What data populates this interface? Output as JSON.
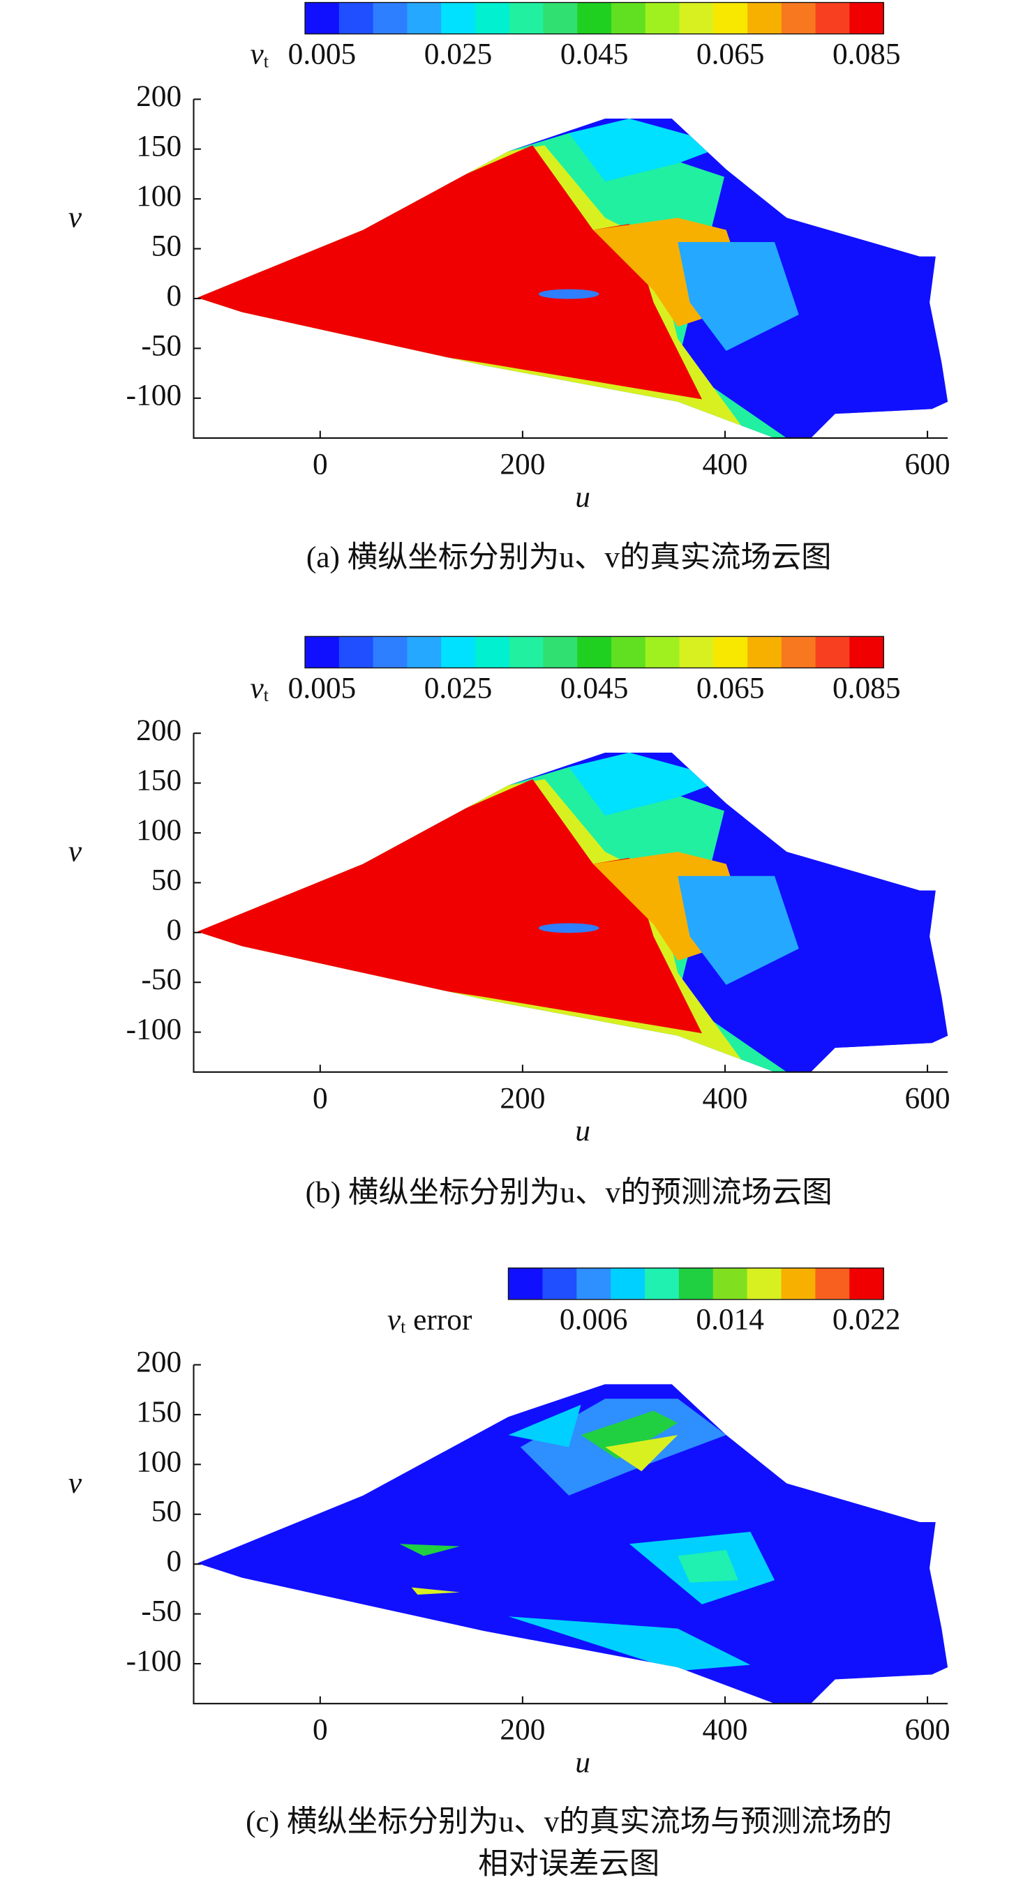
{
  "chart_data": [
    {
      "type": "contour",
      "title": "(a) 横纵坐标分别为u、v的真实流场云图",
      "xlabel": "u",
      "ylabel": "v",
      "xlim": [
        -125,
        620
      ],
      "ylim": [
        -140,
        200
      ],
      "xticks": [
        0,
        200,
        400,
        600
      ],
      "yticks": [
        -100,
        -50,
        0,
        50,
        100,
        150,
        200
      ],
      "colorbar": {
        "label": {
          "symbol": "v",
          "sub": "t"
        },
        "clim": [
          0.0025,
          0.0875
        ],
        "ticks": [
          0.005,
          0.025,
          0.045,
          0.065,
          0.085
        ],
        "colors": [
          "#1010ff",
          "#1f4fff",
          "#2e7fff",
          "#25a8ff",
          "#00e0ff",
          "#00f0d0",
          "#20f0a0",
          "#30e070",
          "#20d020",
          "#60e020",
          "#a0f020",
          "#d8f020",
          "#f8e800",
          "#f8b000",
          "#f87820",
          "#f84020",
          "#f00000"
        ]
      }
    },
    {
      "type": "contour",
      "title": "(b) 横纵坐标分别为u、v的预测流场云图",
      "xlabel": "u",
      "ylabel": "v",
      "xlim": [
        -125,
        620
      ],
      "ylim": [
        -140,
        200
      ],
      "xticks": [
        0,
        200,
        400,
        600
      ],
      "yticks": [
        -100,
        -50,
        0,
        50,
        100,
        150,
        200
      ],
      "colorbar": {
        "label": {
          "symbol": "v",
          "sub": "t"
        },
        "clim": [
          0.0025,
          0.0875
        ],
        "ticks": [
          0.005,
          0.025,
          0.045,
          0.065,
          0.085
        ],
        "colors": [
          "#1010ff",
          "#1f4fff",
          "#2e7fff",
          "#25a8ff",
          "#00e0ff",
          "#00f0d0",
          "#20f0a0",
          "#30e070",
          "#20d020",
          "#60e020",
          "#a0f020",
          "#d8f020",
          "#f8e800",
          "#f8b000",
          "#f87820",
          "#f84020",
          "#f00000"
        ]
      }
    },
    {
      "type": "contour",
      "title": [
        "(c) 横纵坐标分别为u、v的真实流场与预测流场的",
        "相对误差云图"
      ],
      "xlabel": "u",
      "ylabel": "v",
      "xlim": [
        -125,
        620
      ],
      "ylim": [
        -140,
        200
      ],
      "xticks": [
        0,
        200,
        400,
        600
      ],
      "yticks": [
        -100,
        -50,
        0,
        50,
        100,
        150,
        200
      ],
      "colorbar": {
        "label": {
          "symbol": "v",
          "sub": "t",
          "suffix": " error"
        },
        "clim": [
          0.001,
          0.023
        ],
        "ticks": [
          0.006,
          0.014,
          0.022
        ],
        "colors": [
          "#1010ff",
          "#1f4fff",
          "#2e8fff",
          "#00d0ff",
          "#20f0b0",
          "#20d040",
          "#80e020",
          "#d8f020",
          "#f8b000",
          "#f86020",
          "#f00000"
        ]
      }
    }
  ]
}
